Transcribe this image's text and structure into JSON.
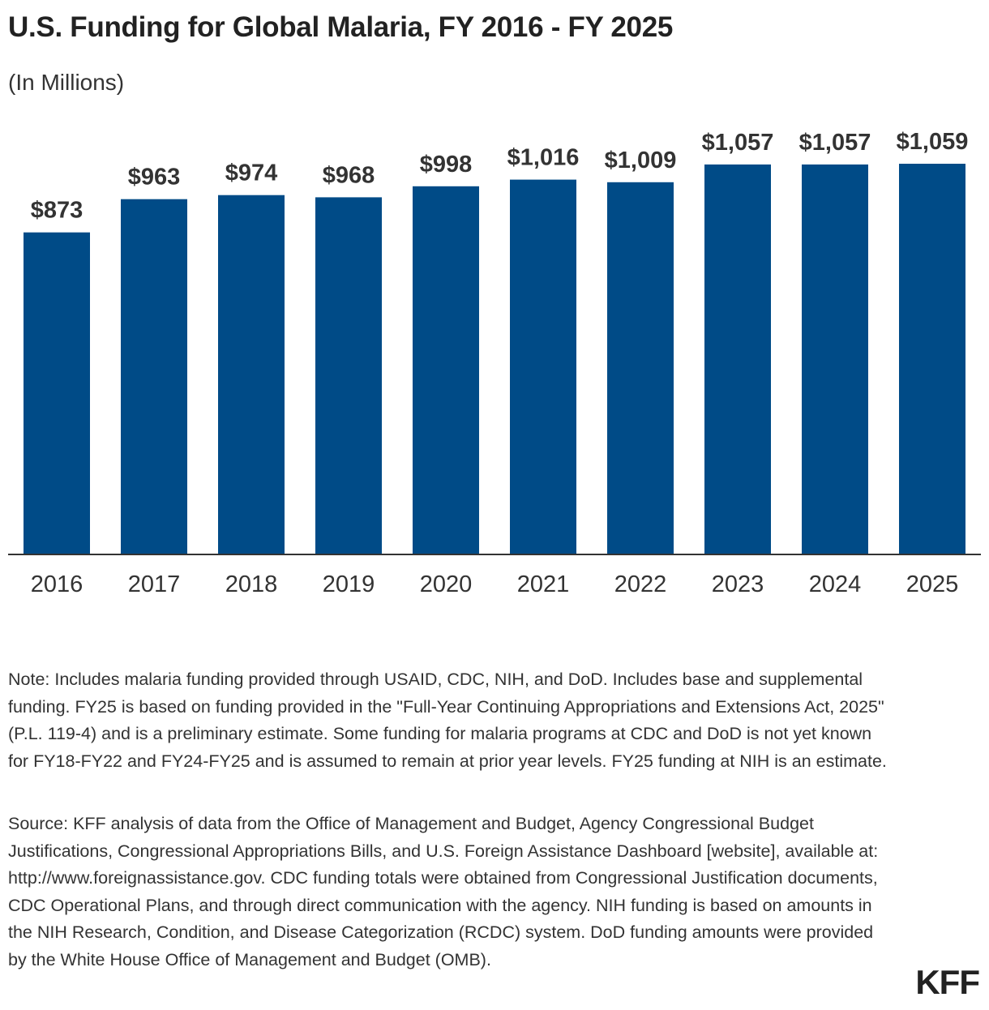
{
  "title": "U.S. Funding for Global Malaria, FY 2016 - FY 2025",
  "subtitle": "(In Millions)",
  "colors": {
    "bar": "#004b87",
    "axis": "#333333"
  },
  "chart_data": {
    "type": "bar",
    "title": "U.S. Funding for Global Malaria, FY 2016 - FY 2025",
    "subtitle": "(In Millions)",
    "xlabel": "",
    "ylabel": "",
    "ylim": [
      0,
      1059
    ],
    "grid": false,
    "categories": [
      "2016",
      "2017",
      "2018",
      "2019",
      "2020",
      "2021",
      "2022",
      "2023",
      "2024",
      "2025"
    ],
    "values": [
      873,
      963,
      974,
      968,
      998,
      1016,
      1009,
      1057,
      1057,
      1059
    ],
    "data_labels": [
      "$873",
      "$963",
      "$974",
      "$968",
      "$998",
      "$1,016",
      "$1,009",
      "$1,057",
      "$1,057",
      "$1,059"
    ]
  },
  "note": "Note: Includes malaria funding provided through USAID, CDC, NIH, and DoD. Includes base and supplemental funding. FY25 is based on funding provided in the \"Full-Year Continuing Appropriations and Extensions Act, 2025\" (P.L. 119-4) and is a preliminary estimate. Some funding for malaria programs at CDC and DoD is not yet known for FY18-FY22 and FY24-FY25 and is assumed to remain at prior year levels. FY25 funding at NIH is an estimate.",
  "source": "Source: KFF analysis of data from the Office of Management and Budget, Agency Congressional Budget Justifications, Congressional Appropriations Bills, and U.S. Foreign Assistance Dashboard [website], available at: http://www.foreignassistance.gov. CDC funding totals were obtained from Congressional Justification documents, CDC Operational Plans, and through direct communication with the agency. NIH funding is based on amounts in the NIH Research, Condition, and Disease Categorization (RCDC) system. DoD funding amounts were provided by the White House Office of Management and Budget (OMB).",
  "logo": "KFF"
}
